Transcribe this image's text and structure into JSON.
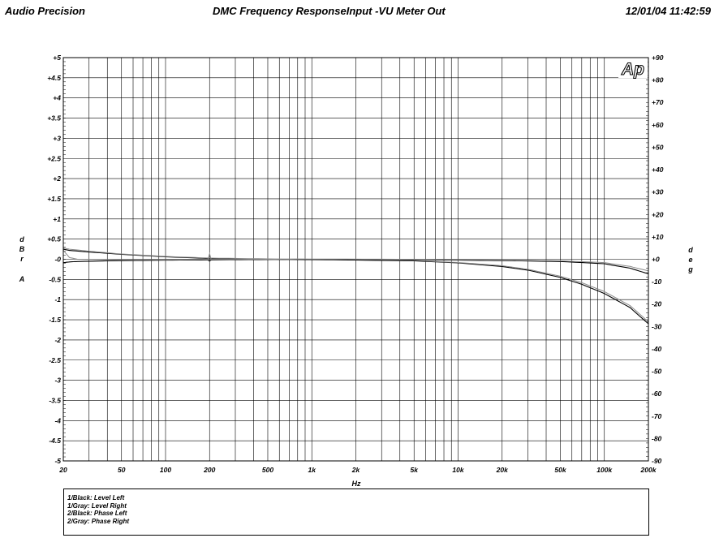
{
  "header": {
    "brand": "Audio Precision",
    "title": "DMC Frequency ResponseInput -VU Meter Out",
    "timestamp": "12/01/04 11:42:59"
  },
  "logo": {
    "text": "Ap"
  },
  "chart_data": {
    "type": "line",
    "xlabel": "Hz",
    "xscale": "log",
    "xlim": [
      20,
      200000
    ],
    "x_tick_values": [
      20,
      50,
      100,
      200,
      500,
      1000,
      2000,
      5000,
      10000,
      20000,
      50000,
      100000,
      200000
    ],
    "x_tick_labels": [
      "20",
      "50",
      "100",
      "200",
      "500",
      "1k",
      "2k",
      "5k",
      "10k",
      "20k",
      "50k",
      "100k",
      "200k"
    ],
    "ylabel_left": [
      "d",
      "B",
      "r",
      "A"
    ],
    "ylim_left": [
      -5,
      5
    ],
    "y_ticks_left": [
      "+5",
      "+4.5",
      "+4",
      "+3.5",
      "+3",
      "+2.5",
      "+2",
      "+1.5",
      "+1",
      "+0.5",
      "-0",
      "-0.5",
      "-1",
      "-1.5",
      "-2",
      "-2.5",
      "-3",
      "-3.5",
      "-4",
      "-4.5",
      "-5"
    ],
    "ylabel_right": [
      "d",
      "e",
      "g"
    ],
    "ylim_right": [
      -90,
      90
    ],
    "y_ticks_right": [
      "+90",
      "+80",
      "+70",
      "+60",
      "+50",
      "+40",
      "+30",
      "+20",
      "+10",
      "+0",
      "-10",
      "-20",
      "-30",
      "-40",
      "-50",
      "-60",
      "-70",
      "-80",
      "-90"
    ],
    "grid": true,
    "series": [
      {
        "name": "1/Black: Level Left",
        "color": "#000000",
        "axis": "left",
        "x": [
          20,
          22,
          30,
          50,
          100,
          200,
          500,
          1000,
          2000,
          5000,
          10000,
          20000,
          30000,
          50000,
          70000,
          100000,
          150000,
          200000
        ],
        "y": [
          0.25,
          0.22,
          0.18,
          0.12,
          0.06,
          0.02,
          0.0,
          -0.01,
          -0.02,
          -0.04,
          -0.09,
          -0.18,
          -0.27,
          -0.45,
          -0.62,
          -0.85,
          -1.2,
          -1.6
        ]
      },
      {
        "name": "1/Gray: Level Right",
        "color": "#888888",
        "axis": "left",
        "x": [
          20,
          22,
          30,
          50,
          100,
          200,
          500,
          1000,
          2000,
          5000,
          10000,
          20000,
          30000,
          50000,
          70000,
          100000,
          150000,
          200000
        ],
        "y": [
          0.28,
          0.25,
          0.2,
          0.13,
          0.07,
          0.03,
          0.01,
          0.0,
          -0.01,
          -0.03,
          -0.08,
          -0.16,
          -0.25,
          -0.42,
          -0.58,
          -0.8,
          -1.15,
          -1.55
        ]
      },
      {
        "name": "2/Black: Phase Left",
        "color": "#000000",
        "axis": "right",
        "x": [
          20,
          22,
          25,
          50,
          100,
          195,
          200,
          205,
          500,
          1000,
          5000,
          10000,
          20000,
          50000,
          100000,
          150000,
          200000
        ],
        "y": [
          -1.5,
          -1.2,
          -1.0,
          -0.6,
          -0.4,
          -0.3,
          -0.8,
          -0.3,
          -0.1,
          0.0,
          -0.2,
          -0.4,
          -0.6,
          -1.0,
          -2.0,
          -4.0,
          -6.5
        ]
      },
      {
        "name": "2/Gray: Phase Right",
        "color": "#888888",
        "axis": "right",
        "x": [
          20,
          22,
          25,
          50,
          100,
          195,
          200,
          205,
          500,
          1000,
          5000,
          10000,
          20000,
          50000,
          100000,
          150000,
          200000
        ],
        "y": [
          4.0,
          0.8,
          0.0,
          -0.3,
          -0.2,
          -0.1,
          2.5,
          -0.1,
          0.0,
          0.1,
          0.0,
          -0.2,
          -0.4,
          -0.7,
          -1.5,
          -3.2,
          -5.2
        ]
      }
    ]
  }
}
